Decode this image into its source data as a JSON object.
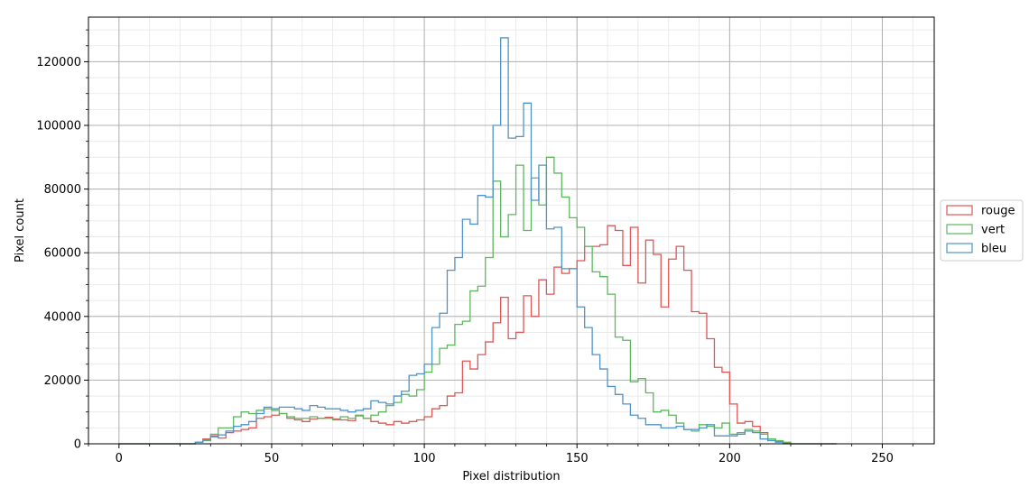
{
  "chart_data": {
    "type": "histogram-step",
    "title": "",
    "xlabel": "Pixel distribution",
    "ylabel": "Pixel count",
    "xlim": [
      -10,
      267
    ],
    "ylim": [
      0,
      134000
    ],
    "xticks": [
      0,
      50,
      100,
      150,
      200,
      250
    ],
    "yticks": [
      0,
      20000,
      40000,
      60000,
      80000,
      100000,
      120000
    ],
    "grid": {
      "major": true,
      "minor": true
    },
    "legend_position": "right, outside plot",
    "bin_width": 2.5,
    "bin_start": 0,
    "series": [
      {
        "name": "rouge",
        "color": "#e05555",
        "values": [
          0,
          0,
          0,
          0,
          0,
          0,
          0,
          0,
          0,
          0,
          500,
          1500,
          2500,
          1800,
          3500,
          4000,
          4500,
          5000,
          8000,
          8500,
          9000,
          9500,
          8000,
          7500,
          7000,
          7800,
          8000,
          8300,
          7800,
          7500,
          7300,
          8800,
          8000,
          7000,
          6500,
          6000,
          7000,
          6500,
          7000,
          7500,
          8500,
          11000,
          12000,
          15000,
          16000,
          26000,
          23500,
          28000,
          32000,
          38000,
          46000,
          33000,
          35000,
          46500,
          40000,
          51500,
          47000,
          55500,
          53500,
          55000,
          57500,
          62000,
          62000,
          62500,
          68500,
          67000,
          56000,
          68000,
          50500,
          64000,
          59500,
          43000,
          58000,
          62000,
          54500,
          41500,
          41000,
          33000,
          24000,
          22500,
          12500,
          6500,
          7000,
          5500,
          3500,
          1500,
          800,
          300,
          0,
          0,
          0,
          0,
          0,
          0
        ]
      },
      {
        "name": "vert",
        "color": "#5cb85c",
        "values": [
          0,
          0,
          0,
          0,
          0,
          0,
          0,
          0,
          0,
          0,
          500,
          1000,
          3000,
          5000,
          5000,
          8500,
          10000,
          9500,
          10500,
          11000,
          10500,
          9500,
          8500,
          8000,
          8000,
          8500,
          8000,
          8000,
          7500,
          8500,
          8000,
          9000,
          8000,
          9000,
          10000,
          12000,
          13000,
          15500,
          15000,
          17000,
          22500,
          25000,
          30000,
          31000,
          37500,
          38500,
          48000,
          49500,
          58500,
          82500,
          65000,
          72000,
          87500,
          67000,
          83500,
          75000,
          90000,
          85000,
          77500,
          71000,
          68000,
          62000,
          54000,
          52500,
          47000,
          33500,
          32500,
          19500,
          20500,
          16000,
          10000,
          10500,
          9000,
          6500,
          4500,
          4000,
          6000,
          5500,
          5000,
          6500,
          3000,
          3500,
          4500,
          4000,
          3000,
          1500,
          1000,
          500,
          0,
          0,
          0,
          0,
          0,
          0
        ]
      },
      {
        "name": "bleu",
        "color": "#4f93c8",
        "values": [
          0,
          0,
          0,
          0,
          0,
          0,
          0,
          0,
          0,
          0,
          500,
          1200,
          2200,
          2800,
          4000,
          5500,
          6000,
          7000,
          9500,
          11500,
          11000,
          11500,
          11500,
          11000,
          10500,
          12000,
          11500,
          11000,
          11000,
          10500,
          10000,
          10500,
          11000,
          13500,
          13000,
          12500,
          15000,
          16500,
          21500,
          22000,
          25000,
          36500,
          41000,
          54500,
          58500,
          70500,
          69000,
          78000,
          77500,
          100000,
          127500,
          96000,
          96500,
          107000,
          76500,
          87500,
          67500,
          68000,
          55000,
          55000,
          43000,
          36500,
          28000,
          23500,
          18000,
          15500,
          12500,
          9000,
          8000,
          6000,
          6000,
          5000,
          5000,
          5500,
          4500,
          4500,
          5000,
          6000,
          2500,
          2500,
          2500,
          3000,
          4000,
          3500,
          1500,
          1000,
          500,
          0,
          0,
          0,
          0,
          0,
          0,
          0
        ]
      }
    ]
  }
}
